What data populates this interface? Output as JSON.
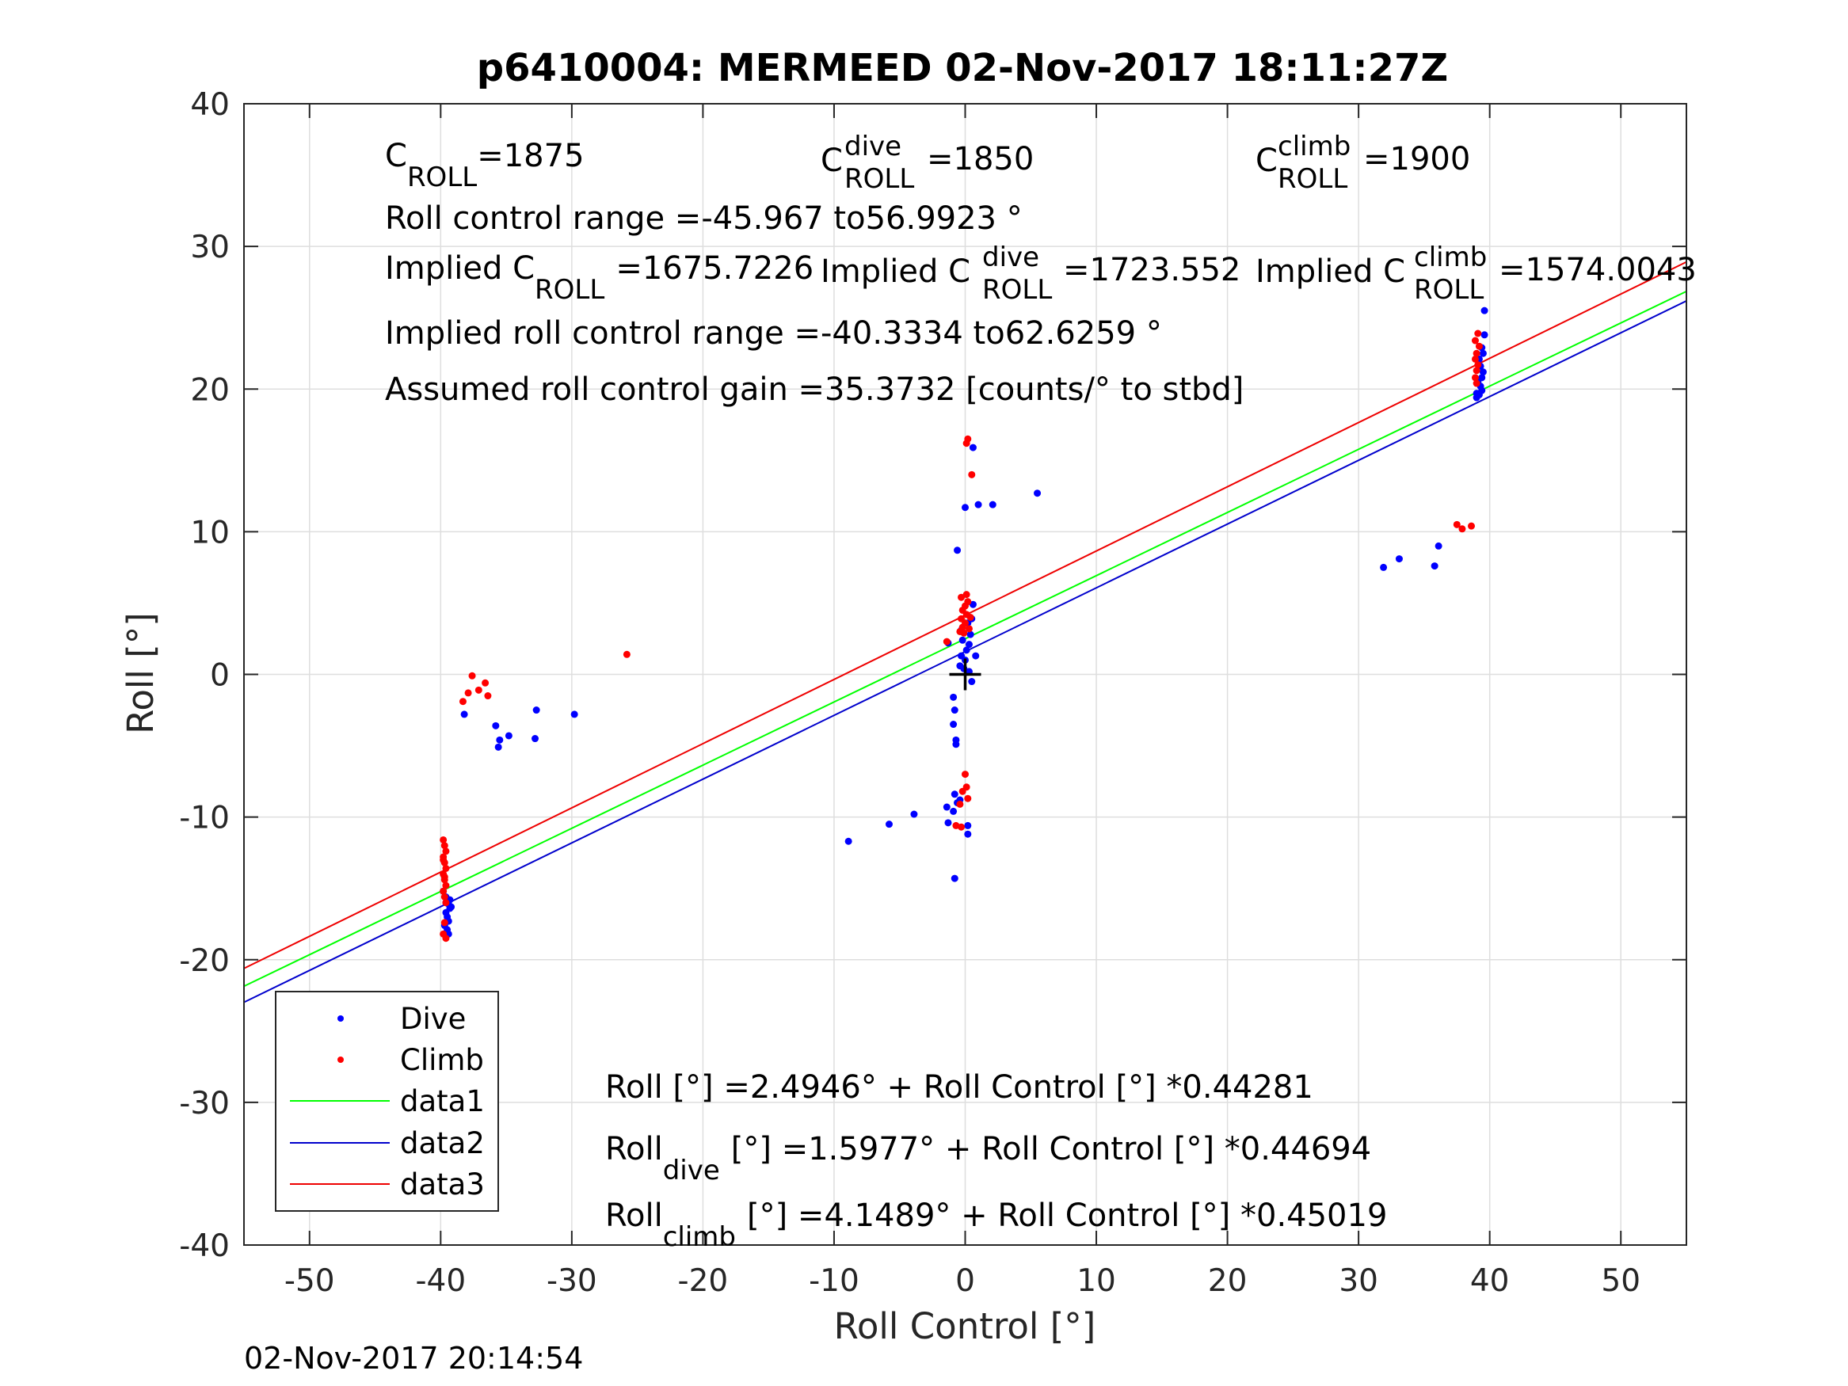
{
  "chart_data": {
    "type": "scatter",
    "title": "p6410004: MERMEED 02-Nov-2017 18:11:27Z",
    "xlabel": "Roll Control [°]",
    "ylabel": "Roll [°]",
    "xlim": [
      -55,
      55
    ],
    "ylim": [
      -40,
      40
    ],
    "xticks": [
      -50,
      -40,
      -30,
      -20,
      -10,
      0,
      10,
      20,
      30,
      40,
      50
    ],
    "yticks": [
      -40,
      -30,
      -20,
      -10,
      0,
      10,
      20,
      30,
      40
    ],
    "xtick_labels": [
      "-50",
      "-40",
      "-30",
      "-20",
      "-10",
      "0",
      "10",
      "20",
      "30",
      "40",
      "50"
    ],
    "ytick_labels": [
      "-40",
      "-30",
      "-20",
      "-10",
      "0",
      "10",
      "20",
      "30",
      "40"
    ],
    "grid": true,
    "legend_position": "bottom-left",
    "legend": [
      "Dive",
      "Climb",
      "data1",
      "data2",
      "data3"
    ],
    "colors": {
      "dive": "#0000ff",
      "climb": "#ff0000",
      "data1": "#00ff00",
      "data2": "#0000cc",
      "data3": "#ee0000"
    },
    "series": [
      {
        "name": "Dive",
        "kind": "points",
        "points": [
          [
            -39.8,
            -15.2
          ],
          [
            -39.6,
            -15.6
          ],
          [
            -39.5,
            -15.9
          ],
          [
            -39.4,
            -16.1
          ],
          [
            -39.3,
            -16.4
          ],
          [
            -39.6,
            -16.7
          ],
          [
            -39.5,
            -17.0
          ],
          [
            -39.4,
            -17.3
          ],
          [
            -39.7,
            -17.6
          ],
          [
            -39.5,
            -17.9
          ],
          [
            -39.4,
            -18.2
          ],
          [
            -39.3,
            -15.8
          ],
          [
            -39.2,
            -16.3
          ],
          [
            -39.6,
            -16.0
          ],
          [
            -38.2,
            -2.8
          ],
          [
            -35.8,
            -3.6
          ],
          [
            -35.5,
            -4.6
          ],
          [
            -35.6,
            -5.1
          ],
          [
            -34.8,
            -4.3
          ],
          [
            -32.8,
            -4.5
          ],
          [
            -32.7,
            -2.5
          ],
          [
            -29.8,
            -2.8
          ],
          [
            -8.9,
            -11.7
          ],
          [
            -5.8,
            -10.5
          ],
          [
            -3.9,
            -9.8
          ],
          [
            -1.4,
            -9.3
          ],
          [
            -1.3,
            -10.4
          ],
          [
            -0.9,
            -9.6
          ],
          [
            -0.6,
            -9.0
          ],
          [
            -0.8,
            -8.4
          ],
          [
            -0.4,
            -8.8
          ],
          [
            -0.8,
            -14.3
          ],
          [
            0.2,
            -10.6
          ],
          [
            0.2,
            -11.2
          ],
          [
            -0.9,
            -3.5
          ],
          [
            -0.8,
            -2.5
          ],
          [
            -0.7,
            -4.6
          ],
          [
            -0.7,
            -4.9
          ],
          [
            -0.9,
            -1.6
          ],
          [
            0.5,
            -0.5
          ],
          [
            -0.4,
            0.6
          ],
          [
            0.0,
            1.0
          ],
          [
            -0.3,
            1.3
          ],
          [
            0.1,
            1.7
          ],
          [
            0.3,
            2.1
          ],
          [
            -0.2,
            2.4
          ],
          [
            0.4,
            2.8
          ],
          [
            -0.3,
            3.1
          ],
          [
            0.2,
            3.6
          ],
          [
            0.5,
            3.9
          ],
          [
            0.6,
            4.9
          ],
          [
            -1.3,
            2.2
          ],
          [
            0.8,
            1.3
          ],
          [
            -0.1,
            0.4
          ],
          [
            0.3,
            0.2
          ],
          [
            -0.6,
            8.7
          ],
          [
            0.0,
            11.7
          ],
          [
            0.6,
            15.9
          ],
          [
            1.0,
            11.9
          ],
          [
            2.1,
            11.9
          ],
          [
            5.5,
            12.7
          ],
          [
            31.9,
            7.5
          ],
          [
            33.1,
            8.1
          ],
          [
            35.8,
            7.6
          ],
          [
            36.1,
            9.0
          ],
          [
            39.0,
            19.4
          ],
          [
            39.2,
            19.6
          ],
          [
            39.4,
            19.9
          ],
          [
            39.3,
            20.2
          ],
          [
            39.1,
            20.5
          ],
          [
            39.4,
            20.8
          ],
          [
            39.5,
            21.2
          ],
          [
            39.3,
            21.6
          ],
          [
            39.2,
            22.1
          ],
          [
            39.5,
            22.5
          ],
          [
            39.4,
            22.9
          ],
          [
            39.6,
            23.8
          ],
          [
            39.6,
            25.5
          ],
          [
            39.0,
            19.7
          ]
        ]
      },
      {
        "name": "Climb",
        "kind": "points",
        "points": [
          [
            -39.8,
            -11.6
          ],
          [
            -39.7,
            -12.0
          ],
          [
            -39.6,
            -12.4
          ],
          [
            -39.8,
            -12.8
          ],
          [
            -39.7,
            -13.2
          ],
          [
            -39.6,
            -13.6
          ],
          [
            -39.8,
            -14.0
          ],
          [
            -39.7,
            -14.4
          ],
          [
            -39.6,
            -14.8
          ],
          [
            -39.8,
            -15.2
          ],
          [
            -39.7,
            -15.6
          ],
          [
            -39.6,
            -16.0
          ],
          [
            -39.7,
            -17.4
          ],
          [
            -39.8,
            -18.2
          ],
          [
            -39.6,
            -18.5
          ],
          [
            -39.8,
            -13.0
          ],
          [
            -39.7,
            -14.2
          ],
          [
            -38.3,
            -1.9
          ],
          [
            -37.9,
            -1.3
          ],
          [
            -37.6,
            -0.1
          ],
          [
            -37.1,
            -1.1
          ],
          [
            -36.6,
            -0.6
          ],
          [
            -36.4,
            -1.5
          ],
          [
            -25.8,
            1.4
          ],
          [
            -1.4,
            2.3
          ],
          [
            -0.4,
            3.0
          ],
          [
            -0.2,
            3.3
          ],
          [
            0.0,
            3.6
          ],
          [
            -0.3,
            3.9
          ],
          [
            0.1,
            4.2
          ],
          [
            -0.2,
            4.5
          ],
          [
            0.0,
            4.8
          ],
          [
            0.2,
            5.1
          ],
          [
            -0.3,
            5.4
          ],
          [
            0.1,
            5.6
          ],
          [
            0.4,
            4.0
          ],
          [
            0.3,
            3.2
          ],
          [
            -0.1,
            2.9
          ],
          [
            0.1,
            16.2
          ],
          [
            0.2,
            16.5
          ],
          [
            0.5,
            14.0
          ],
          [
            0.0,
            -7.0
          ],
          [
            0.1,
            -7.9
          ],
          [
            -0.2,
            -8.2
          ],
          [
            0.2,
            -8.7
          ],
          [
            -0.4,
            -9.1
          ],
          [
            -0.7,
            -10.6
          ],
          [
            -0.3,
            -10.7
          ],
          [
            37.5,
            10.5
          ],
          [
            37.9,
            10.2
          ],
          [
            38.6,
            10.4
          ],
          [
            38.9,
            20.8
          ],
          [
            39.0,
            21.3
          ],
          [
            39.1,
            21.7
          ],
          [
            38.9,
            22.1
          ],
          [
            39.0,
            22.5
          ],
          [
            39.2,
            23.0
          ],
          [
            38.9,
            23.4
          ],
          [
            39.1,
            23.9
          ],
          [
            39.0,
            20.4
          ]
        ]
      },
      {
        "name": "data1",
        "kind": "line",
        "intercept": 2.4946,
        "slope": 0.44281,
        "x": [
          -55,
          55
        ]
      },
      {
        "name": "data2",
        "kind": "line",
        "intercept": 1.5977,
        "slope": 0.44694,
        "x": [
          -55,
          55
        ]
      },
      {
        "name": "data3",
        "kind": "line",
        "intercept": 4.1489,
        "slope": 0.45019,
        "x": [
          -55,
          55
        ]
      }
    ],
    "marker": {
      "type": "plus",
      "x": 0,
      "y": 0
    }
  },
  "annotations": {
    "c_roll": {
      "base": "C",
      "sub": "ROLL",
      "value": "=1875"
    },
    "c_roll_dive": {
      "base": "C",
      "sup": "dive",
      "sub": "ROLL",
      "value": "=1850"
    },
    "c_roll_climb": {
      "base": "C",
      "sup": "climb",
      "sub": "ROLL",
      "value": "=1900"
    },
    "roll_control_range": "Roll control range =-45.967 to56.9923 °",
    "implied_c_roll": {
      "prefix": "Implied C",
      "sub": "ROLL",
      "value": "=1675.7226"
    },
    "implied_c_roll_dive": {
      "prefix": "Implied C",
      "sup": "dive",
      "sub": "ROLL",
      "value": "=1723.552"
    },
    "implied_c_roll_climb": {
      "prefix": "Implied C",
      "sup": "climb",
      "sub": "ROLL",
      "value": "=1574.0043"
    },
    "implied_roll_control_range": "Implied roll control range =-40.3334 to62.6259 °",
    "assumed_gain": "Assumed roll control gain =35.3732 [counts/° to stbd]",
    "eq_all": "Roll [°] =2.4946° + Roll Control [°] *0.44281",
    "eq_dive": {
      "base": "Roll",
      "sub": "dive",
      "rest": "[°] =1.5977° + Roll Control [°] *0.44694"
    },
    "eq_climb": {
      "base": "Roll",
      "sub": "climb",
      "rest": "[°] =4.1489° + Roll Control [°] *0.45019"
    }
  },
  "timestamp": "02-Nov-2017 20:14:54"
}
